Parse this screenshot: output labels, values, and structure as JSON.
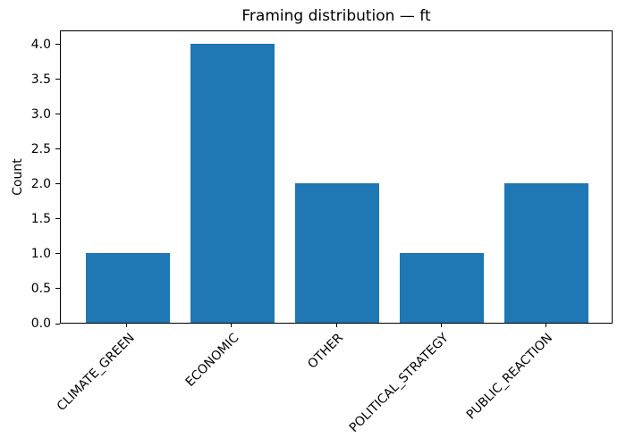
{
  "chart_data": {
    "type": "bar",
    "title": "Framing distribution — ft",
    "xlabel": "",
    "ylabel": "Count",
    "categories": [
      "CLIMATE_GREEN",
      "ECONOMIC",
      "OTHER",
      "POLITICAL_STRATEGY",
      "PUBLIC_REACTION"
    ],
    "values": [
      1,
      4,
      2,
      1,
      2
    ],
    "ylim": [
      0,
      4.2
    ],
    "yticks": [
      0.0,
      0.5,
      1.0,
      1.5,
      2.0,
      2.5,
      3.0,
      3.5,
      4.0
    ],
    "ytick_labels": [
      "0.0",
      "0.5",
      "1.0",
      "1.5",
      "2.0",
      "2.5",
      "3.0",
      "3.5",
      "4.0"
    ],
    "x_tick_rotation": 45,
    "bar_color": "#1f77b4",
    "axis_color": "#000000",
    "background_color": "#ffffff",
    "grid": false,
    "legend": null
  }
}
